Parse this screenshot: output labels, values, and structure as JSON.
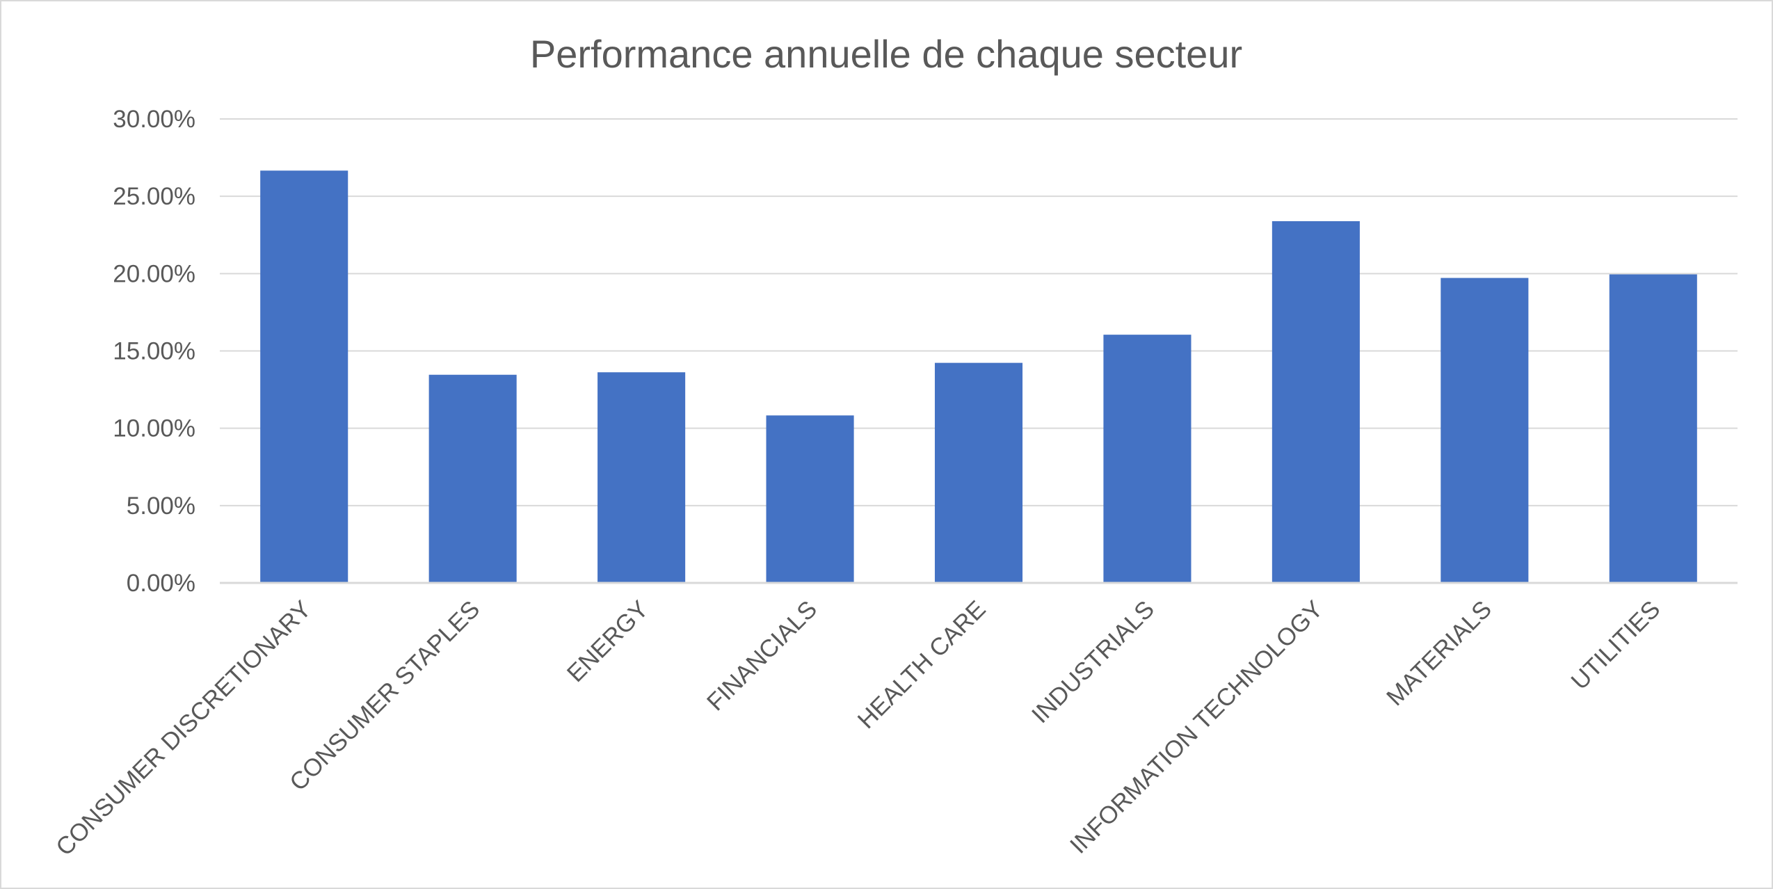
{
  "chart_data": {
    "type": "bar",
    "title": "Performance annuelle de chaque secteur",
    "xlabel": "",
    "ylabel": "",
    "categories": [
      "CONSUMER DISCRETIONARY",
      "CONSUMER STAPLES",
      "ENERGY",
      "FINANCIALS",
      "HEALTH CARE",
      "INDUSTRIALS",
      "INFORMATION TECHNOLOGY",
      "MATERIALS",
      "UTILITIES"
    ],
    "values": [
      0.2666,
      0.1346,
      0.1362,
      0.1083,
      0.1423,
      0.1605,
      0.2339,
      0.1972,
      0.1995
    ],
    "ylim": [
      0,
      0.3
    ],
    "y_ticks": [
      0.0,
      0.05,
      0.1,
      0.15,
      0.2,
      0.25,
      0.3
    ],
    "y_tick_labels": [
      "0.00%",
      "5.00%",
      "10.00%",
      "15.00%",
      "20.00%",
      "25.00%",
      "30.00%"
    ],
    "grid": true,
    "legend": "none",
    "bar_color": "#4472C4",
    "grid_color": "#D9D9D9",
    "text_color": "#595959"
  }
}
